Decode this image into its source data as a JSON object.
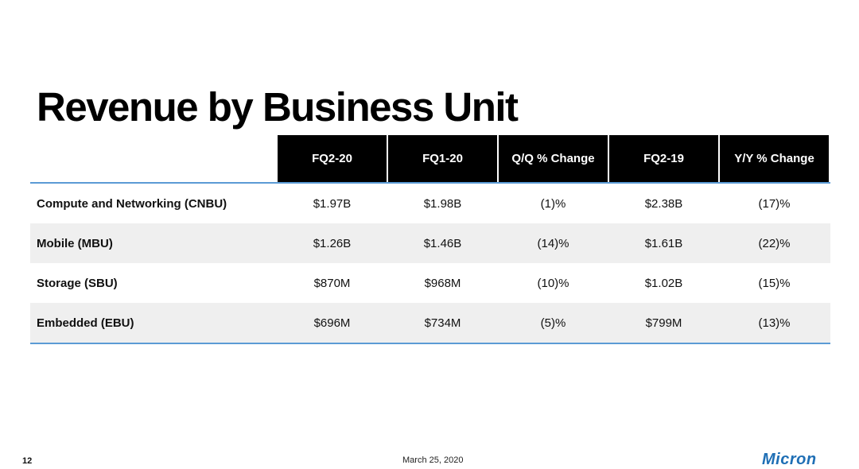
{
  "slide": {
    "title": "Revenue by Business Unit",
    "page_number": "12",
    "date": "March 25, 2020",
    "logo_text": "Micron"
  },
  "table": {
    "headers": [
      "FQ2-20",
      "FQ1-20",
      "Q/Q % Change",
      "FQ2-19",
      "Y/Y % Change"
    ],
    "rows": [
      {
        "label": "Compute and Networking (CNBU)",
        "values": [
          "$1.97B",
          "$1.98B",
          "(1)%",
          "$2.38B",
          "(17)%"
        ]
      },
      {
        "label": "Mobile (MBU)",
        "values": [
          "$1.26B",
          "$1.46B",
          "(14)%",
          "$1.61B",
          "(22)%"
        ]
      },
      {
        "label": "Storage (SBU)",
        "values": [
          "$870M",
          "$968M",
          "(10)%",
          "$1.02B",
          "(15)%"
        ]
      },
      {
        "label": "Embedded (EBU)",
        "values": [
          "$696M",
          "$734M",
          "(5)%",
          "$799M",
          "(13)%"
        ]
      }
    ]
  },
  "colors": {
    "header_bg": "#000000",
    "rule": "#5b9bd5",
    "row_alt": "#efefef",
    "logo": "#1f6fb5"
  }
}
